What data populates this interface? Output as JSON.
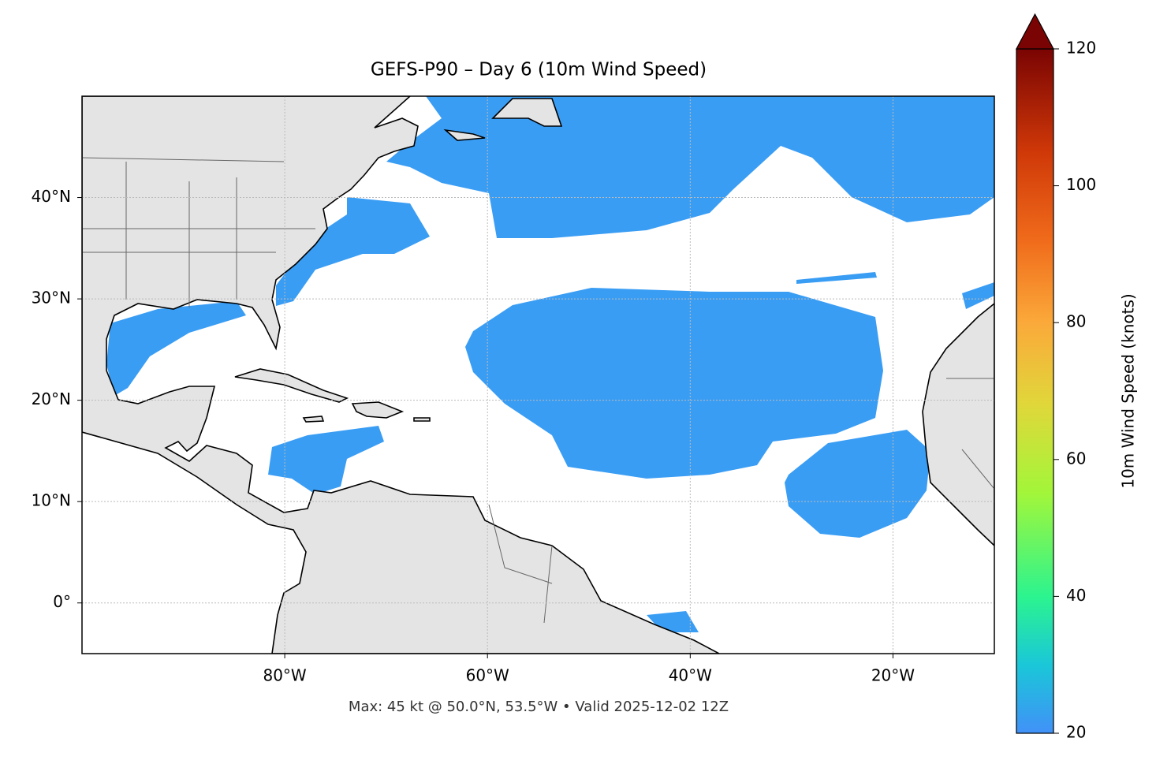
{
  "title": "GEFS-P90 – Day 6 (10m Wind Speed)",
  "map": {
    "lonlim": [
      -100,
      -10
    ],
    "latlim": [
      -5,
      50
    ],
    "grid": true,
    "xticks": [
      {
        "value": -80,
        "label": "80°W"
      },
      {
        "value": -60,
        "label": "60°W"
      },
      {
        "value": -40,
        "label": "40°W"
      },
      {
        "value": -20,
        "label": "20°W"
      }
    ],
    "yticks": [
      {
        "value": 0,
        "label": "0°"
      },
      {
        "value": 10,
        "label": "10°N"
      },
      {
        "value": 20,
        "label": "20°N"
      },
      {
        "value": 30,
        "label": "30°N"
      },
      {
        "value": 40,
        "label": "40°N"
      }
    ]
  },
  "colorbar": {
    "label": "10m Wind Speed (knots)",
    "lim": [
      20,
      120
    ],
    "ticks": [
      20,
      40,
      60,
      80,
      100,
      120
    ],
    "extend": "max"
  },
  "footer": "Max: 45 kt @ 50.0°N, 53.5°W • Valid 2025-12-02 12Z"
}
